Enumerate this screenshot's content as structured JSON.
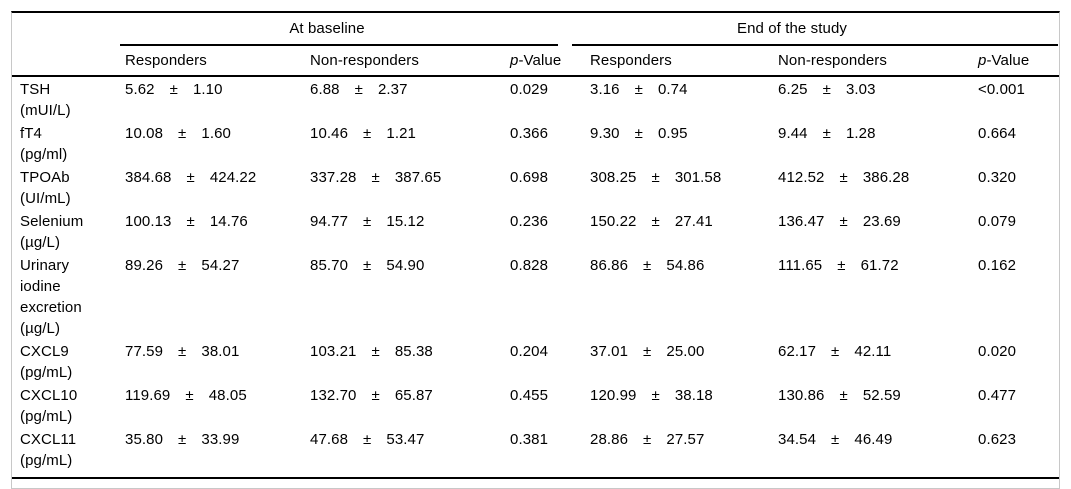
{
  "table": {
    "groups": [
      {
        "label": "At baseline"
      },
      {
        "label": "End of the study"
      }
    ],
    "subheader": {
      "responders": "Responders",
      "non_responders": "Non-responders",
      "p_italic": "p",
      "p_rest": "-Value"
    },
    "plus_minus": "±",
    "rows": [
      {
        "label": "TSH",
        "unit": "(mUI/L)",
        "baseline": {
          "responders": {
            "mean": "5.62",
            "sd": "1.10"
          },
          "non_responders": {
            "mean": "6.88",
            "sd": "2.37"
          },
          "p_value": "0.029"
        },
        "end": {
          "responders": {
            "mean": "3.16",
            "sd": "0.74"
          },
          "non_responders": {
            "mean": "6.25",
            "sd": "3.03"
          },
          "p_value": "<0.001"
        }
      },
      {
        "label": "fT4",
        "unit": "(pg/ml)",
        "baseline": {
          "responders": {
            "mean": "10.08",
            "sd": "1.60"
          },
          "non_responders": {
            "mean": "10.46",
            "sd": "1.21"
          },
          "p_value": "0.366"
        },
        "end": {
          "responders": {
            "mean": "9.30",
            "sd": "0.95"
          },
          "non_responders": {
            "mean": "9.44",
            "sd": "1.28"
          },
          "p_value": "0.664"
        }
      },
      {
        "label": "TPOAb",
        "unit": "(UI/mL)",
        "baseline": {
          "responders": {
            "mean": "384.68",
            "sd": "424.22"
          },
          "non_responders": {
            "mean": "337.28",
            "sd": "387.65"
          },
          "p_value": "0.698"
        },
        "end": {
          "responders": {
            "mean": "308.25",
            "sd": "301.58"
          },
          "non_responders": {
            "mean": "412.52",
            "sd": "386.28"
          },
          "p_value": "0.320"
        }
      },
      {
        "label": "Selenium",
        "unit": "(µg/L)",
        "baseline": {
          "responders": {
            "mean": "100.13",
            "sd": "14.76"
          },
          "non_responders": {
            "mean": "94.77",
            "sd": "15.12"
          },
          "p_value": "0.236"
        },
        "end": {
          "responders": {
            "mean": "150.22",
            "sd": "27.41"
          },
          "non_responders": {
            "mean": "136.47",
            "sd": "23.69"
          },
          "p_value": "0.079"
        }
      },
      {
        "label": "Urinary iodine excretion",
        "unit": "(µg/L)",
        "baseline": {
          "responders": {
            "mean": "89.26",
            "sd": "54.27"
          },
          "non_responders": {
            "mean": "85.70",
            "sd": "54.90"
          },
          "p_value": "0.828"
        },
        "end": {
          "responders": {
            "mean": "86.86",
            "sd": "54.86"
          },
          "non_responders": {
            "mean": "111.65",
            "sd": "61.72"
          },
          "p_value": "0.162"
        }
      },
      {
        "label": "CXCL9",
        "unit": "(pg/mL)",
        "baseline": {
          "responders": {
            "mean": "77.59",
            "sd": "38.01"
          },
          "non_responders": {
            "mean": "103.21",
            "sd": "85.38"
          },
          "p_value": "0.204"
        },
        "end": {
          "responders": {
            "mean": "37.01",
            "sd": "25.00"
          },
          "non_responders": {
            "mean": "62.17",
            "sd": "42.11"
          },
          "p_value": "0.020"
        }
      },
      {
        "label": "CXCL10",
        "unit": "(pg/mL)",
        "baseline": {
          "responders": {
            "mean": "119.69",
            "sd": "48.05"
          },
          "non_responders": {
            "mean": "132.70",
            "sd": "65.87"
          },
          "p_value": "0.455"
        },
        "end": {
          "responders": {
            "mean": "120.99",
            "sd": "38.18"
          },
          "non_responders": {
            "mean": "130.86",
            "sd": "52.59"
          },
          "p_value": "0.477"
        }
      },
      {
        "label": "CXCL11",
        "unit": "(pg/mL)",
        "baseline": {
          "responders": {
            "mean": "35.80",
            "sd": "33.99"
          },
          "non_responders": {
            "mean": "47.68",
            "sd": "53.47"
          },
          "p_value": "0.381"
        },
        "end": {
          "responders": {
            "mean": "28.86",
            "sd": "27.57"
          },
          "non_responders": {
            "mean": "34.54",
            "sd": "46.49"
          },
          "p_value": "0.623"
        }
      }
    ]
  }
}
